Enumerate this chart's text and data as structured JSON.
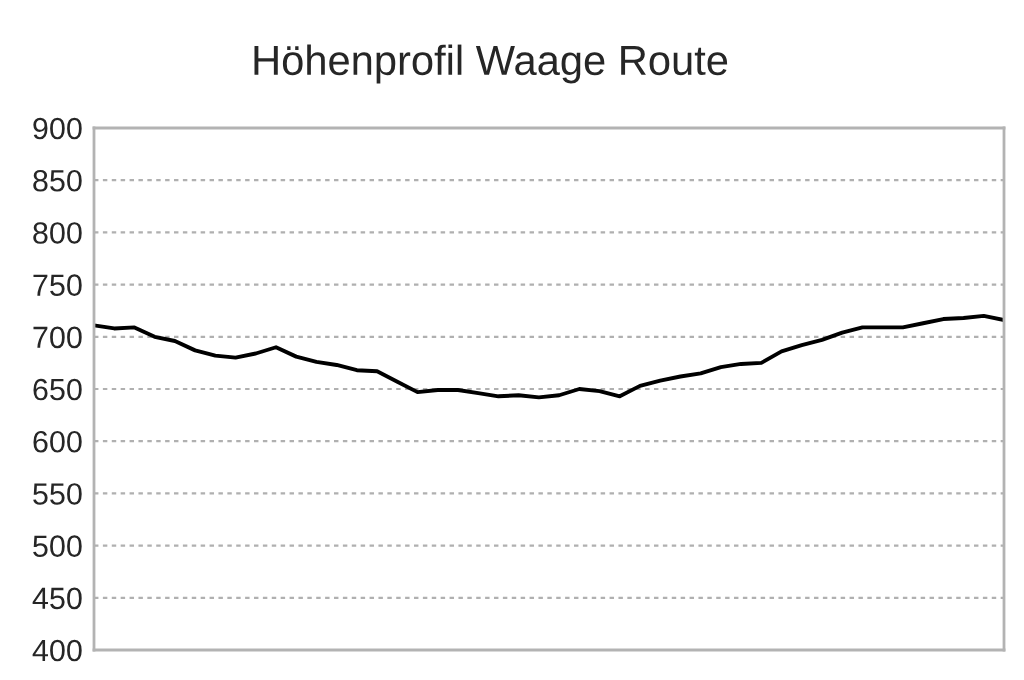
{
  "chart_data": {
    "type": "line",
    "title": "Höhenprofil Waage Route",
    "categories": [
      null,
      null,
      null,
      null,
      null,
      null,
      null,
      null,
      null,
      null,
      null,
      null,
      null,
      null,
      null,
      null,
      null,
      null,
      null,
      null,
      null,
      null,
      null,
      null,
      null,
      null,
      null,
      null,
      null,
      null,
      null,
      null,
      null,
      null,
      null,
      null,
      null,
      null,
      null,
      null,
      null,
      null,
      null,
      null,
      null,
      null
    ],
    "series": [
      {
        "color": "#000000",
        "values": [
          711,
          708,
          709,
          700,
          696,
          687,
          682,
          680,
          684,
          690,
          681,
          676,
          673,
          668,
          667,
          657,
          647,
          649,
          649,
          646,
          643,
          644,
          642,
          644,
          650,
          648,
          643,
          653,
          658,
          662,
          665,
          671,
          674,
          675,
          686,
          692,
          697,
          704,
          709,
          709,
          709,
          713,
          717,
          718,
          720,
          716
        ]
      }
    ],
    "ylim": [
      400,
      900
    ],
    "yticks": [
      400,
      450,
      500,
      550,
      600,
      650,
      700,
      750,
      800,
      850,
      900
    ],
    "grid": "y",
    "legend": false,
    "marker": "none",
    "line_style": "solid"
  }
}
